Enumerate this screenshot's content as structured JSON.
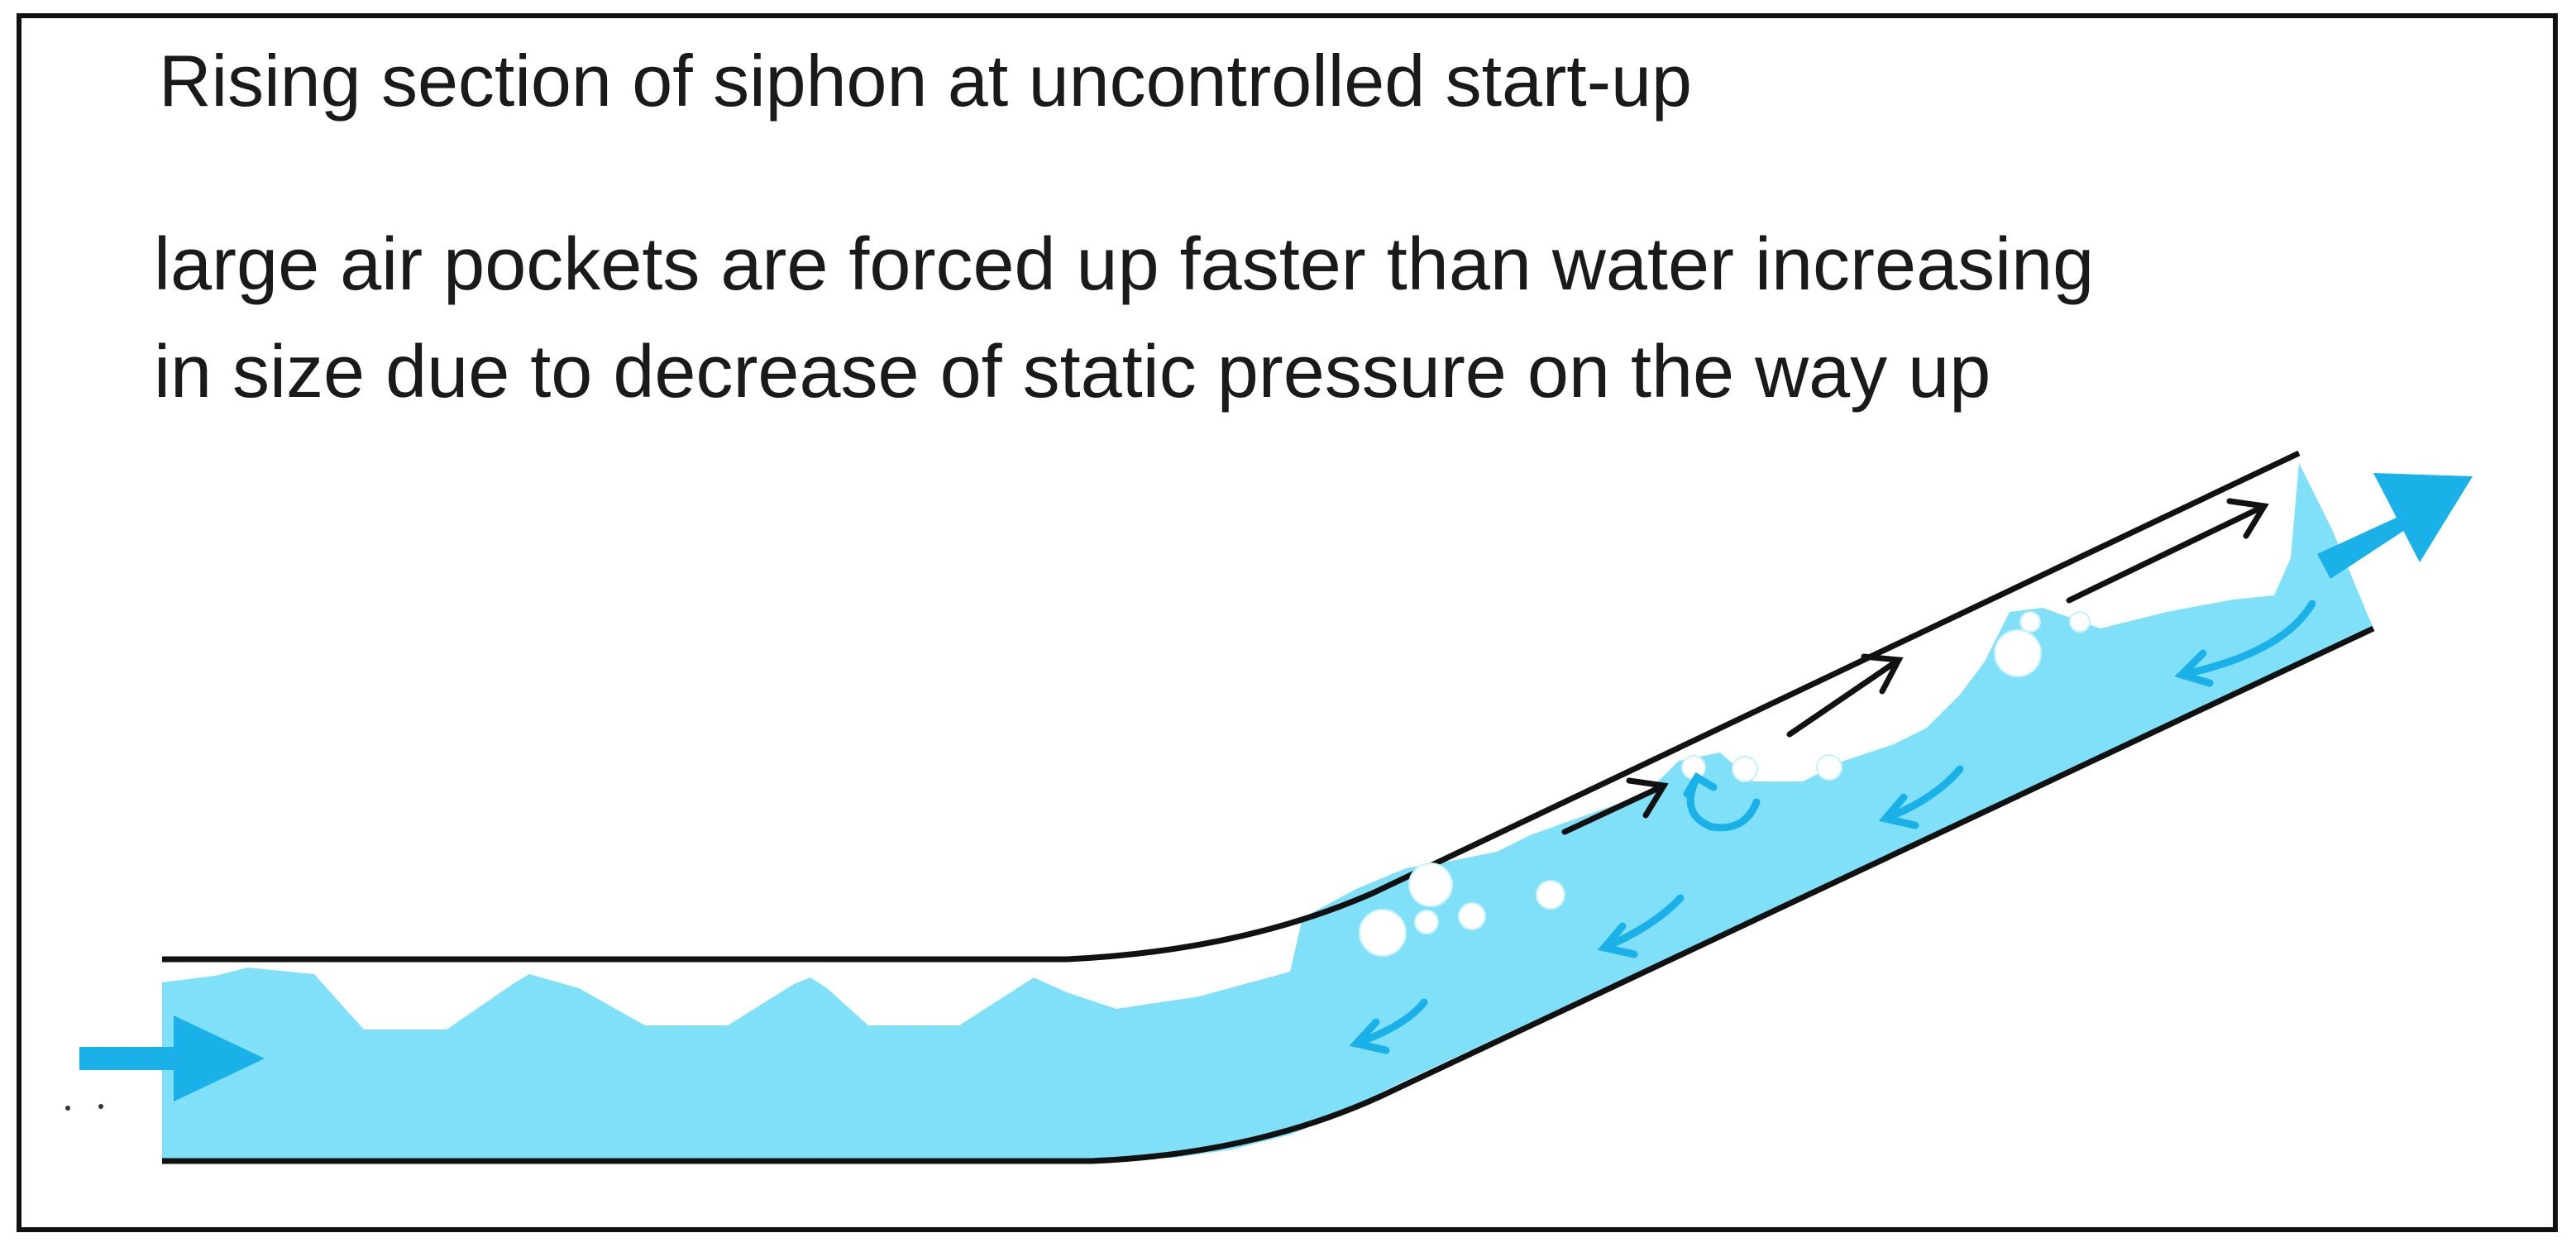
{
  "title": "Rising section of siphon at uncontrolled start-up",
  "description_lines": [
    "large air pockets are forced up faster than water increasing",
    "in size due to decrease of static pressure on the way up"
  ],
  "colors": {
    "water": "#80e0f8",
    "flow_arrow": "#1ab0e8",
    "pipe_wall": "#111111",
    "air_arrow": "#111111",
    "bubble": "#ffffff",
    "border": "#111111"
  }
}
